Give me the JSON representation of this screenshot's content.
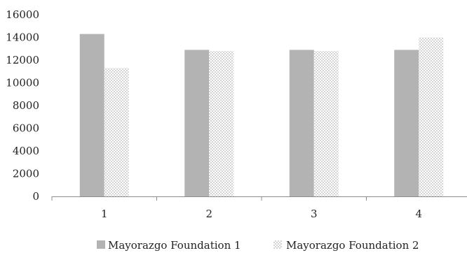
{
  "chart_data": {
    "type": "bar",
    "title": "",
    "xlabel": "",
    "ylabel": "",
    "categories": [
      "1",
      "2",
      "3",
      "4"
    ],
    "series": [
      {
        "name": "Mayorazgo Foundation 1",
        "values": [
          14300,
          12900,
          12900,
          12900
        ],
        "color": "#b3b3b3",
        "pattern": "solid"
      },
      {
        "name": "Mayorazgo Foundation 2",
        "values": [
          11300,
          12800,
          12800,
          14000
        ],
        "color": "#e0e0e0",
        "pattern": "dotted"
      }
    ],
    "ylim": [
      0,
      16000
    ],
    "yticks": [
      "0",
      "2000",
      "4000",
      "6000",
      "8000",
      "10000",
      "12000",
      "14000",
      "16000"
    ],
    "grid": false,
    "legend_position": "bottom"
  }
}
